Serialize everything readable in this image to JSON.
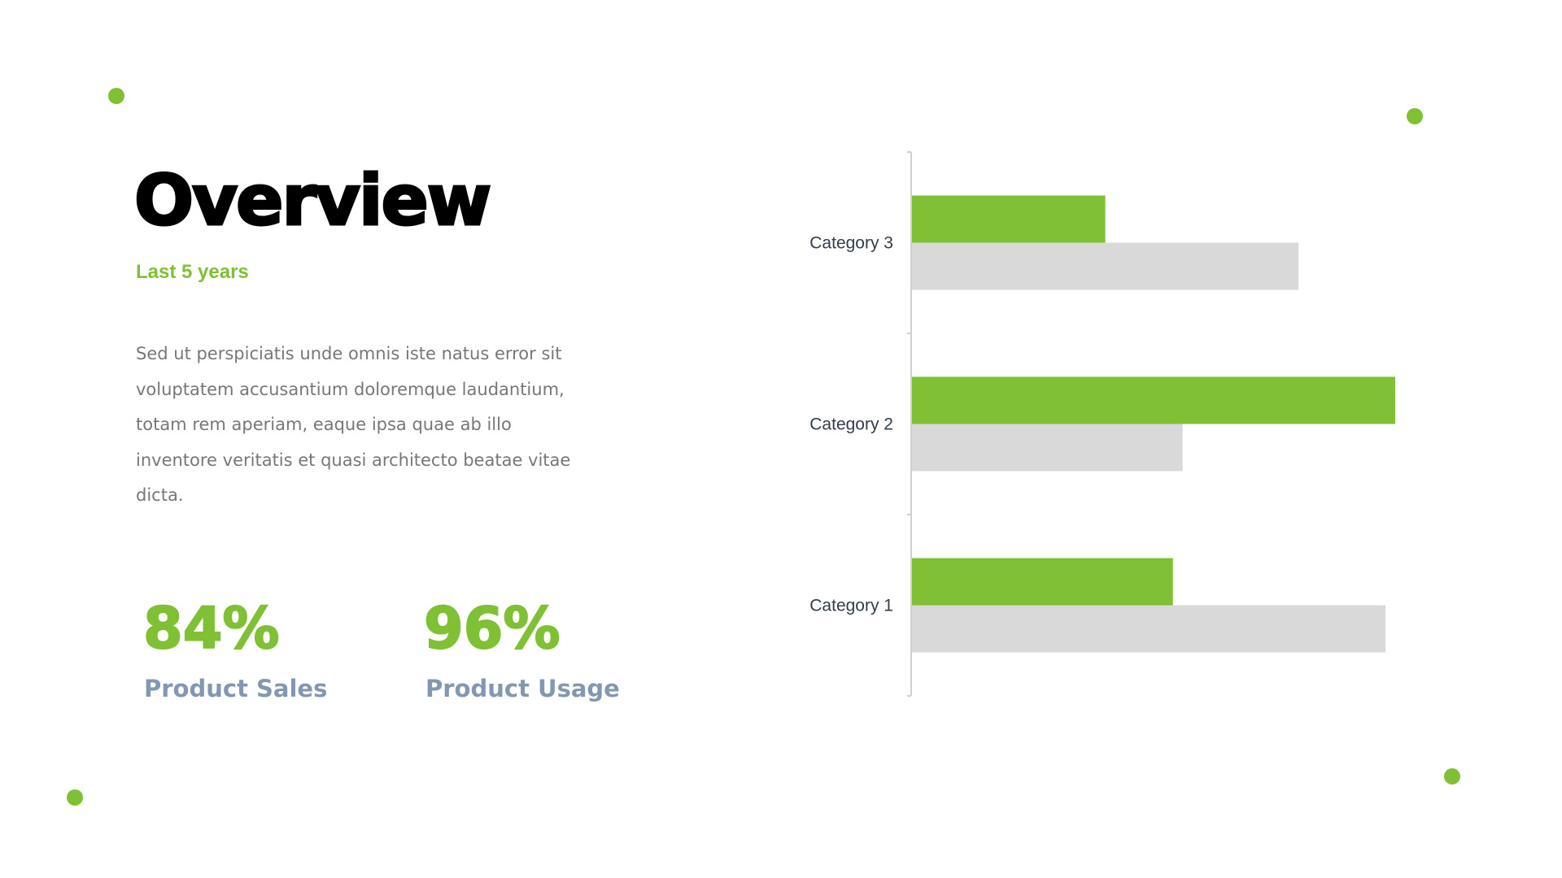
{
  "slide": {
    "title": "Overview",
    "subtitle": "Last 5 years",
    "paragraph": "Sed ut perspiciatis unde omnis iste natus error sit voluptatem accusantium doloremque laudantium, totam rem aperiam, eaque ipsa quae ab illo inventore veritatis et quasi architecto beatae vitae dicta.",
    "stats": [
      {
        "value": "84%",
        "label": "Product Sales"
      },
      {
        "value": "96%",
        "label": "Product Usage"
      }
    ],
    "accent_color": "#7fc034",
    "stat_label_color": "#8497b0"
  },
  "chart_data": {
    "type": "bar",
    "orientation": "horizontal",
    "categories": [
      "Category 1",
      "Category 2",
      "Category 3"
    ],
    "series": [
      {
        "values": [
          2.7,
          5.0,
          2.0
        ],
        "color": "#7fc034"
      },
      {
        "values": [
          4.9,
          2.8,
          4.0
        ],
        "color": "#d9d9d9"
      }
    ],
    "xlim": [
      0,
      5
    ],
    "grid": false,
    "legend": "none",
    "value_axis_visible": false
  }
}
